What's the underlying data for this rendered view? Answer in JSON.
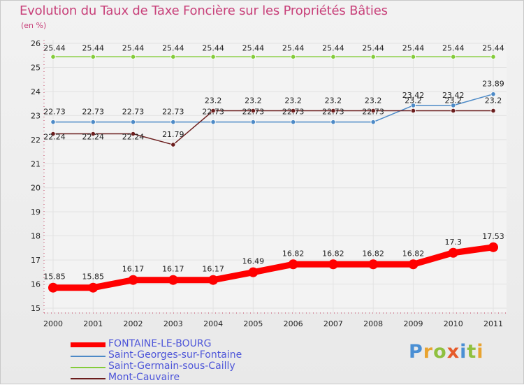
{
  "chart_data": {
    "type": "line",
    "title": "Evolution du Taux de Taxe Foncière sur les Propriétés Bâties",
    "unit_label": "(en %)",
    "xlabel": "",
    "ylabel": "",
    "ylim": [
      15,
      26
    ],
    "categories": [
      "2000",
      "2001",
      "2002",
      "2003",
      "2004",
      "2005",
      "2006",
      "2007",
      "2008",
      "2009",
      "2010",
      "2011"
    ],
    "yticks": [
      "15",
      "16",
      "17",
      "18",
      "19",
      "20",
      "21",
      "22",
      "23",
      "24",
      "25",
      "26"
    ],
    "series": [
      {
        "name": "FONTAINE-LE-BOURG",
        "color": "#ff0000",
        "values": [
          15.85,
          15.85,
          16.17,
          16.17,
          16.17,
          16.49,
          16.82,
          16.82,
          16.82,
          16.82,
          17.3,
          17.53
        ],
        "labels": [
          "15.85",
          "15.85",
          "16.17",
          "16.17",
          "16.17",
          "16.49",
          "16.82",
          "16.82",
          "16.82",
          "16.82",
          "17.3",
          "17.53"
        ]
      },
      {
        "name": "Saint-Georges-sur-Fontaine",
        "color": "#4d8ac7",
        "values": [
          22.73,
          22.73,
          22.73,
          22.73,
          22.73,
          22.73,
          22.73,
          22.73,
          22.73,
          23.42,
          23.42,
          23.89
        ],
        "labels": [
          "22.73",
          "22.73",
          "22.73",
          "22.73",
          "22.73",
          "22.73",
          "22.73",
          "22.73",
          "22.73",
          "23.42",
          "23.42",
          "23.89"
        ]
      },
      {
        "name": "Saint-Germain-sous-Cailly",
        "color": "#84cc3a",
        "values": [
          25.44,
          25.44,
          25.44,
          25.44,
          25.44,
          25.44,
          25.44,
          25.44,
          25.44,
          25.44,
          25.44,
          25.44
        ],
        "labels": [
          "25.44",
          "25.44",
          "25.44",
          "25.44",
          "25.44",
          "25.44",
          "25.44",
          "25.44",
          "25.44",
          "25.44",
          "25.44",
          "25.44"
        ]
      },
      {
        "name": "Mont-Cauvaire",
        "color": "#6b1d1d",
        "values": [
          22.24,
          22.24,
          22.24,
          21.79,
          23.2,
          23.2,
          23.2,
          23.2,
          23.2,
          23.2,
          23.2,
          23.2
        ],
        "labels": [
          "22.24",
          "22.24",
          "22.24",
          "21.79",
          "23.2",
          "23.2",
          "23.2",
          "23.2",
          "23.2",
          "23.2",
          "23.2",
          "23.2"
        ]
      }
    ],
    "legend": {
      "placement": "bottom-left",
      "entries": [
        "FONTAINE-LE-BOURG",
        "Saint-Georges-sur-Fontaine",
        "Saint-Germain-sous-Cailly",
        "Mont-Cauvaire"
      ]
    }
  },
  "logo": {
    "text": "Proxiti"
  }
}
